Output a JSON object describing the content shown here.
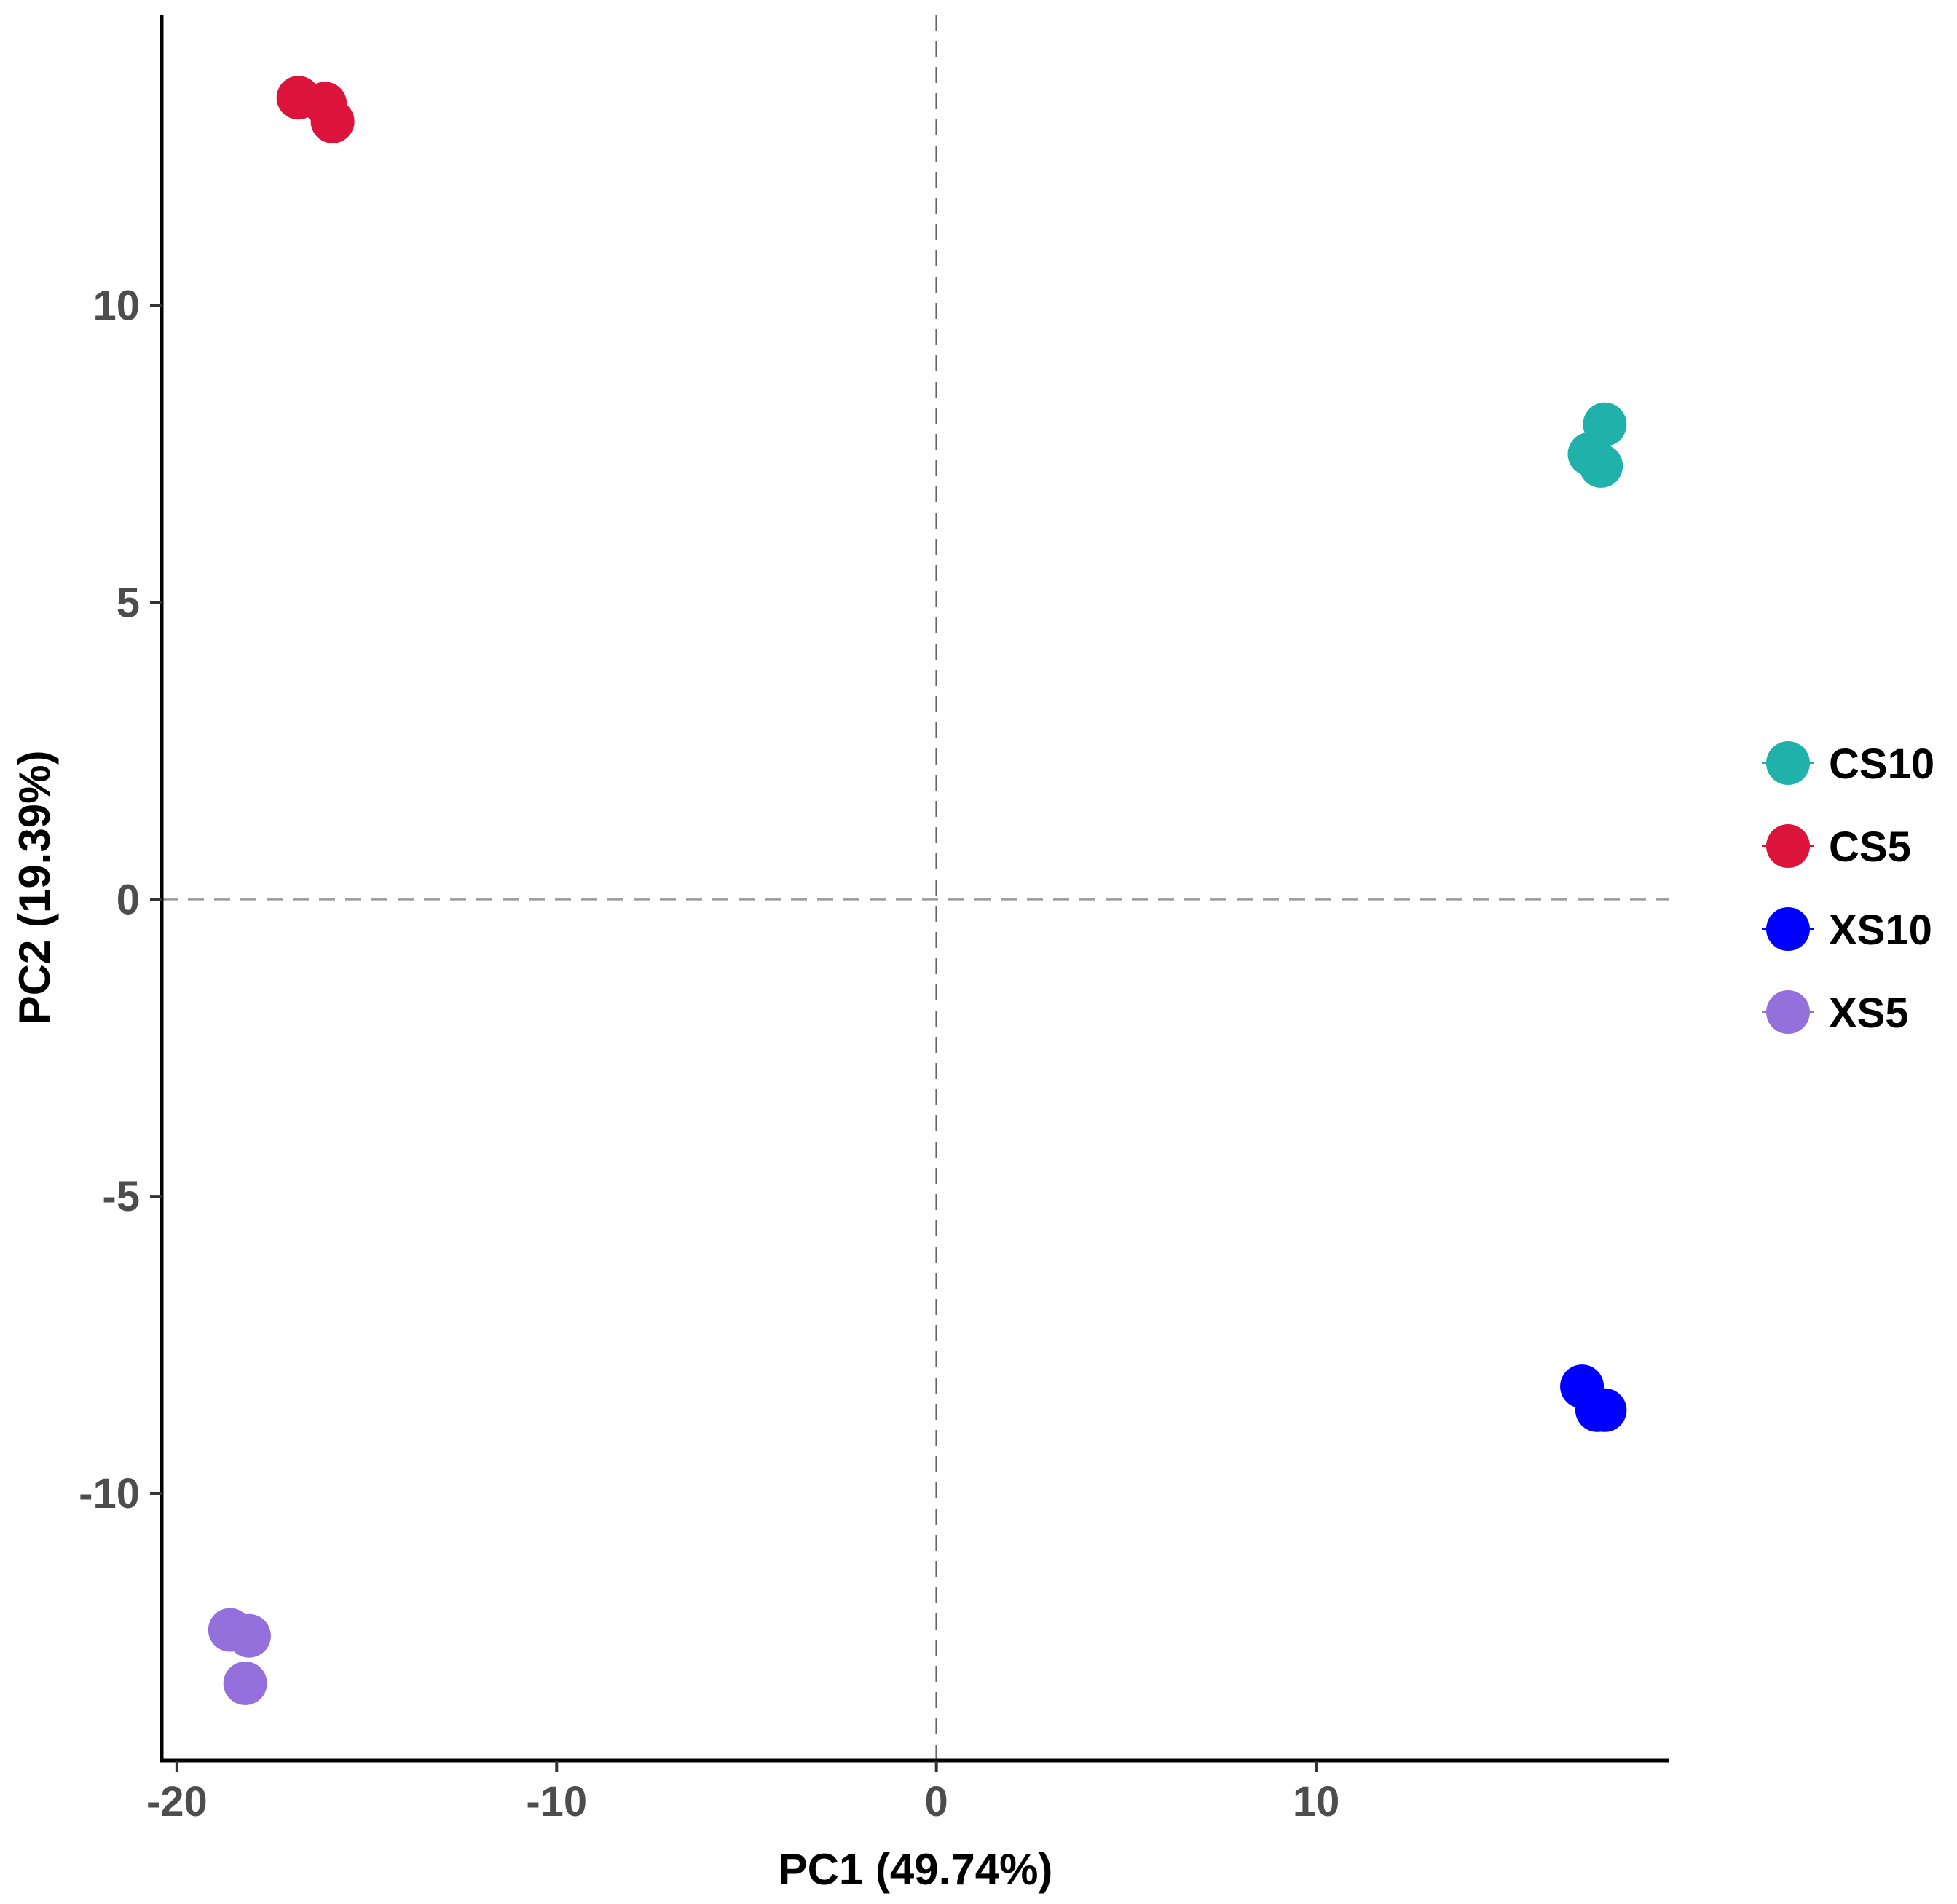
{
  "chart_data": {
    "type": "scatter",
    "title": "",
    "xlabel": "PC1 (49.74%)",
    "ylabel": "PC2 (19.39%)",
    "xlim": [
      -20.4,
      19.3
    ],
    "ylim": [
      -14.5,
      14.9
    ],
    "x_ticks": [
      -20,
      -10,
      0,
      10
    ],
    "x_tick_labels": [
      "-20",
      "-10",
      "0",
      "10"
    ],
    "y_ticks": [
      -10,
      -5,
      0,
      5,
      10
    ],
    "y_tick_labels": [
      "-10",
      "-5",
      "0",
      "5",
      "10"
    ],
    "reference_lines": {
      "x": 0,
      "y": 0,
      "style": "dashed"
    },
    "grid": false,
    "legend_position": "right",
    "series": [
      {
        "name": "CS10",
        "color": "#20B2AA",
        "points": [
          [
            17.6,
            8.0
          ],
          [
            17.2,
            7.5
          ],
          [
            17.5,
            7.3
          ]
        ]
      },
      {
        "name": "CS5",
        "color": "#DC143C",
        "points": [
          [
            -16.8,
            13.5
          ],
          [
            -16.1,
            13.4
          ],
          [
            -15.9,
            13.1
          ]
        ]
      },
      {
        "name": "XS10",
        "color": "#0000FF",
        "points": [
          [
            17.0,
            -8.2
          ],
          [
            17.4,
            -8.6
          ],
          [
            17.6,
            -8.6
          ]
        ]
      },
      {
        "name": "XS5",
        "color": "#9370DB",
        "points": [
          [
            -18.6,
            -12.3
          ],
          [
            -18.1,
            -12.4
          ],
          [
            -18.2,
            -13.2
          ]
        ]
      }
    ]
  }
}
